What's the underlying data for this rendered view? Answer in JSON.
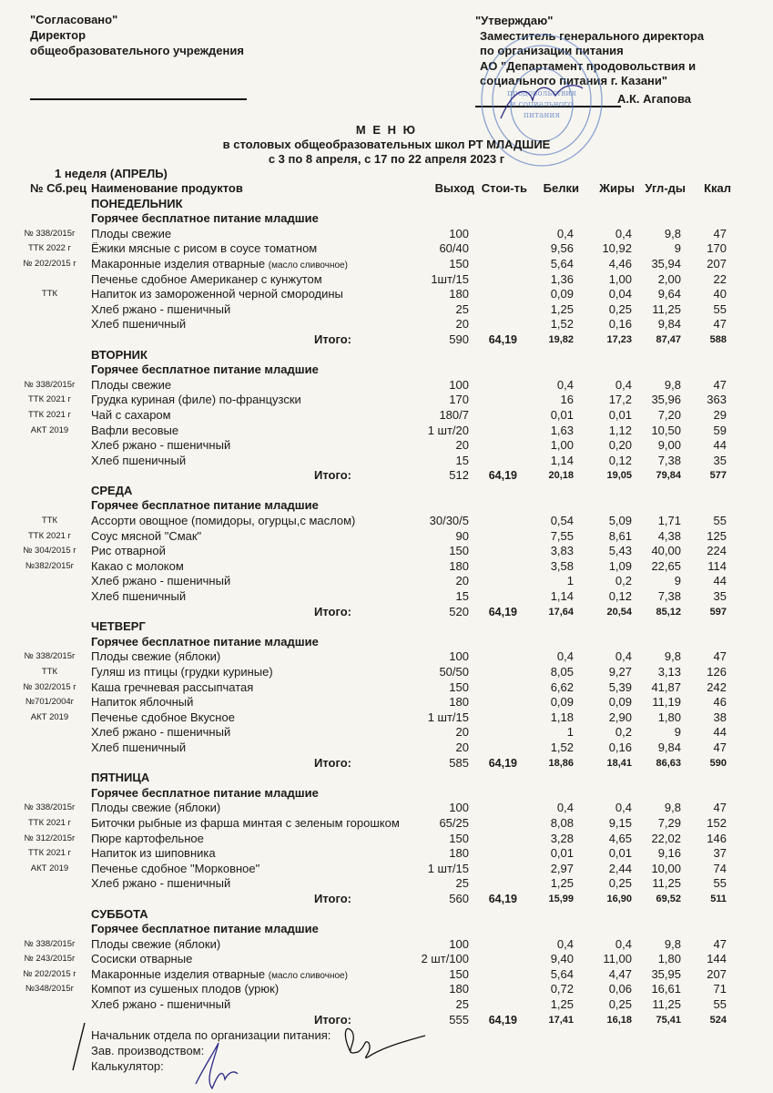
{
  "approval_left": {
    "line1": "\"Согласовано\"",
    "line2": "Директор",
    "line3": "общеобразовательного учреждения"
  },
  "approval_right": {
    "line1": "\"Утверждаю\"",
    "line2": "Заместитель генерального директора",
    "line3": "по организации питания",
    "line4": "АО  \"Департамент  продовольствия  и",
    "line5": "социального питания г. Казани\"",
    "signatory": "А.К. Агапова"
  },
  "stamp_text": "Департамент продовольствия и социального питания",
  "title": {
    "heading": "М Е Н Ю",
    "subtitle": "в столовых общеобразовательных школ РТ МЛАДШИЕ",
    "dates": "с 3  по 8  апреля, с 17  по  22  апреля  2023 г"
  },
  "week_label": "1 неделя (АПРЕЛЬ)",
  "columns": {
    "code": "№ Сб.рец",
    "name": "Наименование продуктов",
    "output": "Выход",
    "cost": "Стои-ть",
    "protein": "Белки",
    "fat": "Жиры",
    "carbs": "Угл-ды",
    "kcal": "Ккал"
  },
  "total_label": "Итого:",
  "days": [
    {
      "day": "ПОНЕДЕЛЬНИК",
      "section": "Горячее бесплатное питание младшие",
      "items": [
        {
          "code": "№ 338/2015г",
          "name": "Плоды свежие",
          "output": "100",
          "protein": "0,4",
          "fat": "0,4",
          "carbs": "9,8",
          "kcal": "47"
        },
        {
          "code": "ТТК 2022 г",
          "name": "Ёжики мясные с рисом  в соусе томатном",
          "output": "60/40",
          "protein": "9,56",
          "fat": "10,92",
          "carbs": "9",
          "kcal": "170"
        },
        {
          "code": "№ 202/2015 г",
          "name": "Макаронные изделия отварные",
          "note": "(масло сливочное)",
          "output": "150",
          "protein": "5,64",
          "fat": "4,46",
          "carbs": "35,94",
          "kcal": "207"
        },
        {
          "code": "",
          "name": "Печенье сдобное Американер с кунжутом",
          "output": "1шт/15",
          "protein": "1,36",
          "fat": "1,00",
          "carbs": "2,00",
          "kcal": "22"
        },
        {
          "code": "ТТК",
          "name": "Напиток из замороженной черной смородины",
          "output": "180",
          "protein": "0,09",
          "fat": "0,04",
          "carbs": "9,64",
          "kcal": "40"
        },
        {
          "code": "",
          "name": "Хлеб ржано - пшеничный",
          "output": "25",
          "protein": "1,25",
          "fat": "0,25",
          "carbs": "11,25",
          "kcal": "55"
        },
        {
          "code": "",
          "name": "Хлеб пшеничный",
          "output": "20",
          "protein": "1,52",
          "fat": "0,16",
          "carbs": "9,84",
          "kcal": "47"
        }
      ],
      "total": {
        "output": "590",
        "cost": "64,19",
        "protein": "19,82",
        "fat": "17,23",
        "carbs": "87,47",
        "kcal": "588"
      }
    },
    {
      "day": "ВТОРНИК",
      "section": "Горячее бесплатное питание младшие",
      "items": [
        {
          "code": "№ 338/2015г",
          "name": "Плоды свежие",
          "output": "100",
          "protein": "0,4",
          "fat": "0,4",
          "carbs": "9,8",
          "kcal": "47"
        },
        {
          "code": "ТТК 2021 г",
          "name": "Грудка куриная (филе) по-французски",
          "output": "170",
          "protein": "16",
          "fat": "17,2",
          "carbs": "35,96",
          "kcal": "363"
        },
        {
          "code": "ТТК 2021 г",
          "name": "Чай с сахаром",
          "output": "180/7",
          "protein": "0,01",
          "fat": "0,01",
          "carbs": "7,20",
          "kcal": "29"
        },
        {
          "code": "АКТ 2019",
          "name": "Вафли весовые",
          "output": "1 шт/20",
          "protein": "1,63",
          "fat": "1,12",
          "carbs": "10,50",
          "kcal": "59"
        },
        {
          "code": "",
          "name": "Хлеб ржано - пшеничный",
          "output": "20",
          "protein": "1,00",
          "fat": "0,20",
          "carbs": "9,00",
          "kcal": "44"
        },
        {
          "code": "",
          "name": "Хлеб пшеничный",
          "output": "15",
          "protein": "1,14",
          "fat": "0,12",
          "carbs": "7,38",
          "kcal": "35"
        }
      ],
      "total": {
        "output": "512",
        "cost": "64,19",
        "protein": "20,18",
        "fat": "19,05",
        "carbs": "79,84",
        "kcal": "577"
      }
    },
    {
      "day": "СРЕДА",
      "section": "Горячее бесплатное питание младшие",
      "items": [
        {
          "code": "ТТК",
          "name": "Ассорти овощное (помидоры, огурцы,с маслом)",
          "output": "30/30/5",
          "protein": "0,54",
          "fat": "5,09",
          "carbs": "1,71",
          "kcal": "55"
        },
        {
          "code": "ТТК 2021 г",
          "name": "Соус мясной \"Смак\"",
          "output": "90",
          "protein": "7,55",
          "fat": "8,61",
          "carbs": "4,38",
          "kcal": "125"
        },
        {
          "code": "№ 304/2015 г",
          "name": "Рис отварной",
          "output": "150",
          "protein": "3,83",
          "fat": "5,43",
          "carbs": "40,00",
          "kcal": "224"
        },
        {
          "code": "№382/2015г",
          "name": "Какао с молоком",
          "output": "180",
          "protein": "3,58",
          "fat": "1,09",
          "carbs": "22,65",
          "kcal": "114"
        },
        {
          "code": "",
          "name": "Хлеб ржано - пшеничный",
          "output": "20",
          "protein": "1",
          "fat": "0,2",
          "carbs": "9",
          "kcal": "44"
        },
        {
          "code": "",
          "name": "Хлеб пшеничный",
          "output": "15",
          "protein": "1,14",
          "fat": "0,12",
          "carbs": "7,38",
          "kcal": "35"
        }
      ],
      "total": {
        "output": "520",
        "cost": "64,19",
        "protein": "17,64",
        "fat": "20,54",
        "carbs": "85,12",
        "kcal": "597"
      }
    },
    {
      "day": "ЧЕТВЕРГ",
      "section": "Горячее бесплатное питание младшие",
      "items": [
        {
          "code": "№ 338/2015г",
          "name": "Плоды свежие (яблоки)",
          "output": "100",
          "protein": "0,4",
          "fat": "0,4",
          "carbs": "9,8",
          "kcal": "47"
        },
        {
          "code": "ТТК",
          "name": "Гуляш из птицы (грудки куриные)",
          "output": "50/50",
          "protein": "8,05",
          "fat": "9,27",
          "carbs": "3,13",
          "kcal": "126"
        },
        {
          "code": "№ 302/2015 г",
          "name": "Каша гречневая рассыпчатая",
          "output": "150",
          "protein": "6,62",
          "fat": "5,39",
          "carbs": "41,87",
          "kcal": "242"
        },
        {
          "code": "№701/2004г",
          "name": "Напиток яблочный",
          "output": "180",
          "protein": "0,09",
          "fat": "0,09",
          "carbs": "11,19",
          "kcal": "46"
        },
        {
          "code": "АКТ 2019",
          "name": "Печенье сдобное Вкусное",
          "output": "1 шт/15",
          "protein": "1,18",
          "fat": "2,90",
          "carbs": "1,80",
          "kcal": "38"
        },
        {
          "code": "",
          "name": "Хлеб ржано - пшеничный",
          "output": "20",
          "protein": "1",
          "fat": "0,2",
          "carbs": "9",
          "kcal": "44"
        },
        {
          "code": "",
          "name": "Хлеб пшеничный",
          "output": "20",
          "protein": "1,52",
          "fat": "0,16",
          "carbs": "9,84",
          "kcal": "47"
        }
      ],
      "total": {
        "output": "585",
        "cost": "64,19",
        "protein": "18,86",
        "fat": "18,41",
        "carbs": "86,63",
        "kcal": "590"
      }
    },
    {
      "day": "ПЯТНИЦА",
      "section": "Горячее бесплатное питание младшие",
      "items": [
        {
          "code": "№ 338/2015г",
          "name": "Плоды свежие (яблоки)",
          "output": "100",
          "protein": "0,4",
          "fat": "0,4",
          "carbs": "9,8",
          "kcal": "47"
        },
        {
          "code": "ТТК 2021 г",
          "name": "Биточки рыбные из фарша минтая с зеленым горошком",
          "output": "65/25",
          "protein": "8,08",
          "fat": "9,15",
          "carbs": "7,29",
          "kcal": "152"
        },
        {
          "code": "№ 312/2015г",
          "name": "Пюре картофельное",
          "output": "150",
          "protein": "3,28",
          "fat": "4,65",
          "carbs": "22,02",
          "kcal": "146"
        },
        {
          "code": "ТТК 2021 г",
          "name": "Напиток из шиповника",
          "output": "180",
          "protein": "0,01",
          "fat": "0,01",
          "carbs": "9,16",
          "kcal": "37"
        },
        {
          "code": "АКТ 2019",
          "name": "Печенье сдобное \"Морковное\"",
          "output": "1 шт/15",
          "protein": "2,97",
          "fat": "2,44",
          "carbs": "10,00",
          "kcal": "74"
        },
        {
          "code": "",
          "name": "Хлеб ржано - пшеничный",
          "output": "25",
          "protein": "1,25",
          "fat": "0,25",
          "carbs": "11,25",
          "kcal": "55"
        }
      ],
      "total": {
        "output": "560",
        "cost": "64,19",
        "protein": "15,99",
        "fat": "16,90",
        "carbs": "69,52",
        "kcal": "511"
      }
    },
    {
      "day": "СУББОТА",
      "section": "Горячее бесплатное питание младшие",
      "items": [
        {
          "code": "№ 338/2015г",
          "name": "Плоды свежие (яблоки)",
          "output": "100",
          "protein": "0,4",
          "fat": "0,4",
          "carbs": "9,8",
          "kcal": "47"
        },
        {
          "code": "№ 243/2015г",
          "name": "Сосиски отварные",
          "output": "2 шт/100",
          "protein": "9,40",
          "fat": "11,00",
          "carbs": "1,80",
          "kcal": "144"
        },
        {
          "code": "№ 202/2015 г",
          "name": "Макаронные изделия отварные",
          "note": "(масло сливочное)",
          "output": "150",
          "protein": "5,64",
          "fat": "4,47",
          "carbs": "35,95",
          "kcal": "207"
        },
        {
          "code": "№348/2015г",
          "name": "Компот из сушеных плодов (урюк)",
          "output": "180",
          "protein": "0,72",
          "fat": "0,06",
          "carbs": "16,61",
          "kcal": "71"
        },
        {
          "code": "",
          "name": "Хлеб ржано - пшеничный",
          "output": "25",
          "protein": "1,25",
          "fat": "0,25",
          "carbs": "11,25",
          "kcal": "55"
        }
      ],
      "total": {
        "output": "555",
        "cost": "64,19",
        "protein": "17,41",
        "fat": "16,18",
        "carbs": "75,41",
        "kcal": "524"
      }
    }
  ],
  "footer": {
    "line1": "Начальник отдела по организации питания:",
    "line2": "Зав. производством:",
    "line3": "Калькулятор:"
  },
  "colors": {
    "ink": "#1a1a1a",
    "paper": "#f7f5ef",
    "stamp": "#5a7fc4",
    "signature": "#2a2a8a"
  }
}
